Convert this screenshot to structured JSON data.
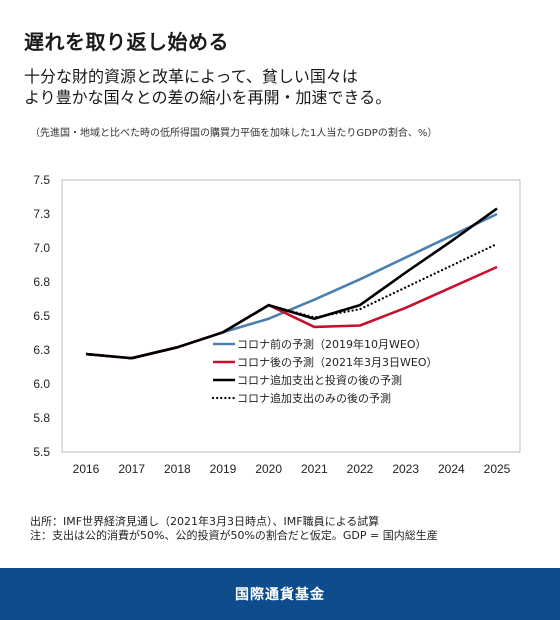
{
  "header": {
    "title": "遅れを取り返し始める",
    "subtitle_line1": "十分な財的資源と改革によって、貧しい国々は",
    "subtitle_line2": "より豊かな国々との差の縮小を再開・加速できる。",
    "note": "（先進国・地域と比べた時の低所得国の購買力平価を加味した1人当たりGDPの割合、%）"
  },
  "footer": {
    "source_line1": "出所：IMF世界経済見通し（2021年3月3日時点）、IMF職員による試算",
    "source_line2": "注：支出は公的消費が50%、公的投資が50%の割合だと仮定。GDP = 国内総生産",
    "org": "国際通貨基金"
  },
  "chart_data": {
    "type": "line",
    "x": [
      2016,
      2017,
      2018,
      2019,
      2020,
      2021,
      2022,
      2023,
      2024,
      2025
    ],
    "y_ticks": [
      "7.5",
      "7.3",
      "7.0",
      "6.8",
      "6.5",
      "6.3",
      "6.0",
      "5.8",
      "5.5"
    ],
    "y_tick_values": [
      7.5,
      7.25,
      7.0,
      6.75,
      6.5,
      6.25,
      6.0,
      5.75,
      5.5
    ],
    "ylim": [
      5.5,
      7.5
    ],
    "grid": false,
    "legend_position": "bottom-right",
    "series": [
      {
        "name": "コロナ前の予測（2019年10月WEO）",
        "color": "#4a7fb0",
        "style": "solid",
        "x": [
          2016,
          2017,
          2018,
          2019,
          2020,
          2021,
          2022,
          2023,
          2024,
          2025
        ],
        "values": [
          6.22,
          6.19,
          6.27,
          6.38,
          6.48,
          6.62,
          6.77,
          6.93,
          7.09,
          7.25
        ]
      },
      {
        "name": "コロナ後の予測（2021年3月3日WEO）",
        "color": "#c8102e",
        "style": "solid",
        "x": [
          2016,
          2017,
          2018,
          2019,
          2020,
          2021,
          2022,
          2023,
          2024,
          2025
        ],
        "values": [
          6.22,
          6.19,
          6.27,
          6.38,
          6.58,
          6.42,
          6.43,
          6.56,
          6.71,
          6.86
        ]
      },
      {
        "name": "コロナ追加支出と投資の後の予測",
        "color": "#000000",
        "style": "solid",
        "x": [
          2016,
          2017,
          2018,
          2019,
          2020,
          2021,
          2022,
          2023,
          2024,
          2025
        ],
        "values": [
          6.22,
          6.19,
          6.27,
          6.38,
          6.58,
          6.48,
          6.58,
          6.82,
          7.05,
          7.29
        ]
      },
      {
        "name": "コロナ追加支出のみの後の予測",
        "color": "#000000",
        "style": "dotted",
        "x": [
          2020,
          2021,
          2022,
          2023,
          2024,
          2025
        ],
        "values": [
          6.58,
          6.49,
          6.55,
          6.71,
          6.87,
          7.03
        ]
      }
    ]
  }
}
